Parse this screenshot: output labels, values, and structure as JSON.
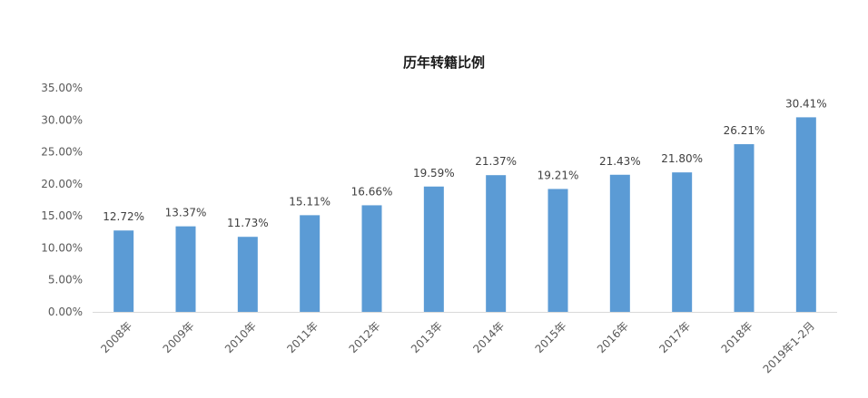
{
  "chart_data": {
    "type": "bar",
    "title": "历年转籍比例",
    "xlabel": "",
    "ylabel": "",
    "categories": [
      "2008年",
      "2009年",
      "2010年",
      "2011年",
      "2012年",
      "2013年",
      "2014年",
      "2015年",
      "2016年",
      "2017年",
      "2018年",
      "2019年1-2月"
    ],
    "values": [
      12.72,
      13.37,
      11.73,
      15.11,
      16.66,
      19.59,
      21.37,
      19.21,
      21.43,
      21.8,
      26.21,
      30.41
    ],
    "data_labels": [
      "12.72%",
      "13.37%",
      "11.73%",
      "15.11%",
      "16.66%",
      "19.59%",
      "21.37%",
      "19.21%",
      "21.43%",
      "21.80%",
      "26.21%",
      "30.41%"
    ],
    "ylim": [
      0,
      35
    ],
    "yticks": [
      0,
      5,
      10,
      15,
      20,
      25,
      30,
      35
    ],
    "ytick_labels": [
      "0.00%",
      "5.00%",
      "10.00%",
      "15.00%",
      "20.00%",
      "25.00%",
      "30.00%",
      "35.00%"
    ],
    "grid": false,
    "legend": "none",
    "bar_color": "#5b9bd5",
    "axis_color": "#d9d9d9"
  }
}
